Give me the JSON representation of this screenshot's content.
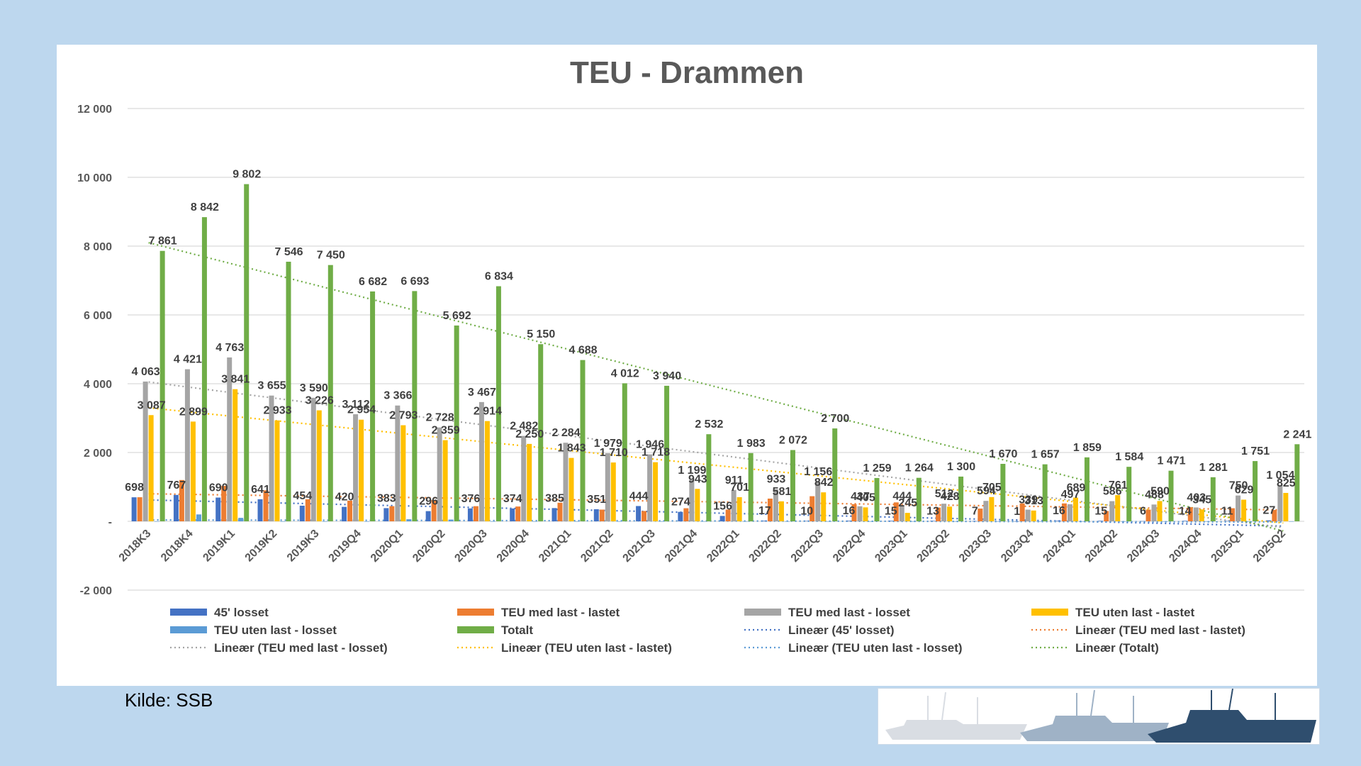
{
  "chart_data": {
    "type": "bar",
    "title": "TEU - Drammen",
    "xlabel": "",
    "ylabel": "",
    "ylim": [
      -2000,
      12000
    ],
    "yticks": [
      12000,
      10000,
      8000,
      6000,
      4000,
      2000,
      0,
      -2000
    ],
    "ytick_labels": [
      "12 000",
      "10 000",
      "8 000",
      "6 000",
      "4 000",
      "2 000",
      "-",
      "-2 000"
    ],
    "grid": true,
    "legend_position": "bottom",
    "categories": [
      "2018K3",
      "2018K4",
      "2019K1",
      "2019K2",
      "2019K3",
      "2019Q4",
      "2020Q1",
      "2020Q2",
      "2020Q3",
      "2020Q4",
      "2021Q1",
      "2021Q2",
      "2021Q3",
      "2021Q4",
      "2022Q1",
      "2022Q2",
      "2022Q3",
      "2022Q4",
      "2023Q1",
      "2023Q2",
      "2023Q3",
      "2023Q4",
      "2024Q1",
      "2024Q2",
      "2024Q3",
      "2024Q4",
      "2025Q1",
      "2025Q2"
    ],
    "series": [
      {
        "name": "45' losset",
        "color": "#4472c4",
        "values": [
          698,
          767,
          690,
          641,
          454,
          420,
          383,
          296,
          376,
          374,
          385,
          351,
          444,
          274,
          156,
          17,
          10,
          16,
          15,
          13,
          7,
          1,
          16,
          15,
          6,
          14,
          11,
          27
        ],
        "labels": [
          "698",
          "767",
          "690",
          "641",
          "454",
          "420",
          "383",
          "296",
          "376",
          "374",
          "385",
          "351",
          "444",
          "274",
          "156",
          "17",
          "10",
          "16",
          "15",
          "13",
          "7",
          "1",
          "16",
          "15",
          "6",
          "14",
          "11",
          "27"
        ]
      },
      {
        "name": "TEU med last - lastet",
        "color": "#ed7d31",
        "values": [
          700,
          1200,
          1030,
          900,
          640,
          600,
          440,
          620,
          440,
          430,
          540,
          340,
          300,
          380,
          340,
          660,
          730,
          500,
          550,
          400,
          370,
          520,
          520,
          300,
          340,
          410,
          380,
          330
        ]
      },
      {
        "name": "TEU med last - losset",
        "color": "#a5a5a5",
        "values": [
          4063,
          4421,
          4763,
          3655,
          3590,
          3112,
          3366,
          2728,
          3467,
          2482,
          2284,
          1979,
          1946,
          1199,
          911,
          933,
          1156,
          437,
          444,
          512,
          594,
          339,
          497,
          586,
          488,
          403,
          750,
          1054
        ],
        "labels": [
          "4 063",
          "4 421",
          "4 763",
          "3 655",
          "3 590",
          "3 112",
          "3 366",
          "2 728",
          "3 467",
          "2 482",
          "2 284",
          "1 979",
          "1 946",
          "1 199",
          "911",
          "933",
          "1 156",
          "437",
          "444",
          "512",
          "594",
          "339",
          "497",
          "586",
          "488",
          "403",
          "750",
          "1 054"
        ]
      },
      {
        "name": "TEU uten last - lastet",
        "color": "#ffc000",
        "values": [
          3087,
          2899,
          3841,
          2933,
          3226,
          2954,
          2793,
          2359,
          2914,
          2250,
          1843,
          1710,
          1718,
          943,
          701,
          581,
          842,
          405,
          245,
          428,
          705,
          313,
          689,
          761,
          590,
          345,
          629,
          825
        ],
        "labels": [
          "3 087",
          "2 899",
          "3 841",
          "2 933",
          "3 226",
          "2 954",
          "2 793",
          "2 359",
          "2 914",
          "2 250",
          "1 843",
          "1 710",
          "1 718",
          "943",
          "701",
          "581",
          "842",
          "405",
          "245",
          "428",
          "705",
          "313",
          "689",
          "761",
          "590",
          "345",
          "629",
          "825"
        ]
      },
      {
        "name": "TEU uten last - losset",
        "color": "#5b9bd5",
        "values": [
          0,
          200,
          100,
          0,
          0,
          0,
          60,
          50,
          0,
          0,
          0,
          0,
          0,
          0,
          0,
          0,
          0,
          0,
          0,
          0,
          0,
          0,
          0,
          0,
          0,
          0,
          0,
          0
        ]
      },
      {
        "name": "Totalt",
        "color": "#70ad47",
        "values": [
          7861,
          8842,
          9802,
          7546,
          7450,
          6682,
          6693,
          5692,
          6834,
          5150,
          4688,
          4012,
          3940,
          2532,
          1983,
          2072,
          2700,
          1259,
          1264,
          1300,
          1670,
          1657,
          1859,
          1584,
          1471,
          1281,
          1751,
          2241
        ],
        "labels": [
          "7 861",
          "8 842",
          "9 802",
          "7 546",
          "7 450",
          "6 682",
          "6 693",
          "5 692",
          "6 834",
          "5 150",
          "4 688",
          "4 012",
          "3 940",
          "2 532",
          "1 983",
          "2 072",
          "2 700",
          "1 259",
          "1 264",
          "1 300",
          "1 670",
          "1 657",
          "1 859",
          "1 584",
          "1 471",
          "1 281",
          "1 751",
          "2 241"
        ]
      }
    ],
    "trendlines": [
      {
        "name": "Lineær (45' losset)",
        "color": "#4472c4",
        "from": 620,
        "to": -140
      },
      {
        "name": "Lineær (TEU med last - lastet)",
        "color": "#ed7d31",
        "from": 800,
        "to": 330
      },
      {
        "name": "Lineær (TEU med last - losset)",
        "color": "#a5a5a5",
        "from": 4050,
        "to": -180
      },
      {
        "name": "Lineær (TEU uten last - lastet)",
        "color": "#ffc000",
        "from": 3300,
        "to": -50
      },
      {
        "name": "Lineær (TEU uten last - losset)",
        "color": "#5b9bd5",
        "from": 40,
        "to": -20
      },
      {
        "name": "Lineær (Totalt)",
        "color": "#70ad47",
        "from": 8100,
        "to": -280
      }
    ],
    "legend": [
      "45' losset",
      "TEU med last - lastet",
      "TEU med last - losset",
      "TEU uten last - lastet",
      "TEU uten last - losset",
      "Totalt",
      "Lineær (45' losset)",
      "Lineær (TEU med last - lastet)",
      "Lineær (TEU med last - losset)",
      "Lineær (TEU uten last - lastet)",
      "Lineær (TEU uten last - losset)",
      "Lineær (Totalt)"
    ]
  },
  "source_note": "Kilde: SSB",
  "image": {
    "description_icon": "ships-icon"
  },
  "colors": {
    "background": "#bdd7ee",
    "panel": "#ffffff",
    "grid": "#d9d9d9"
  }
}
